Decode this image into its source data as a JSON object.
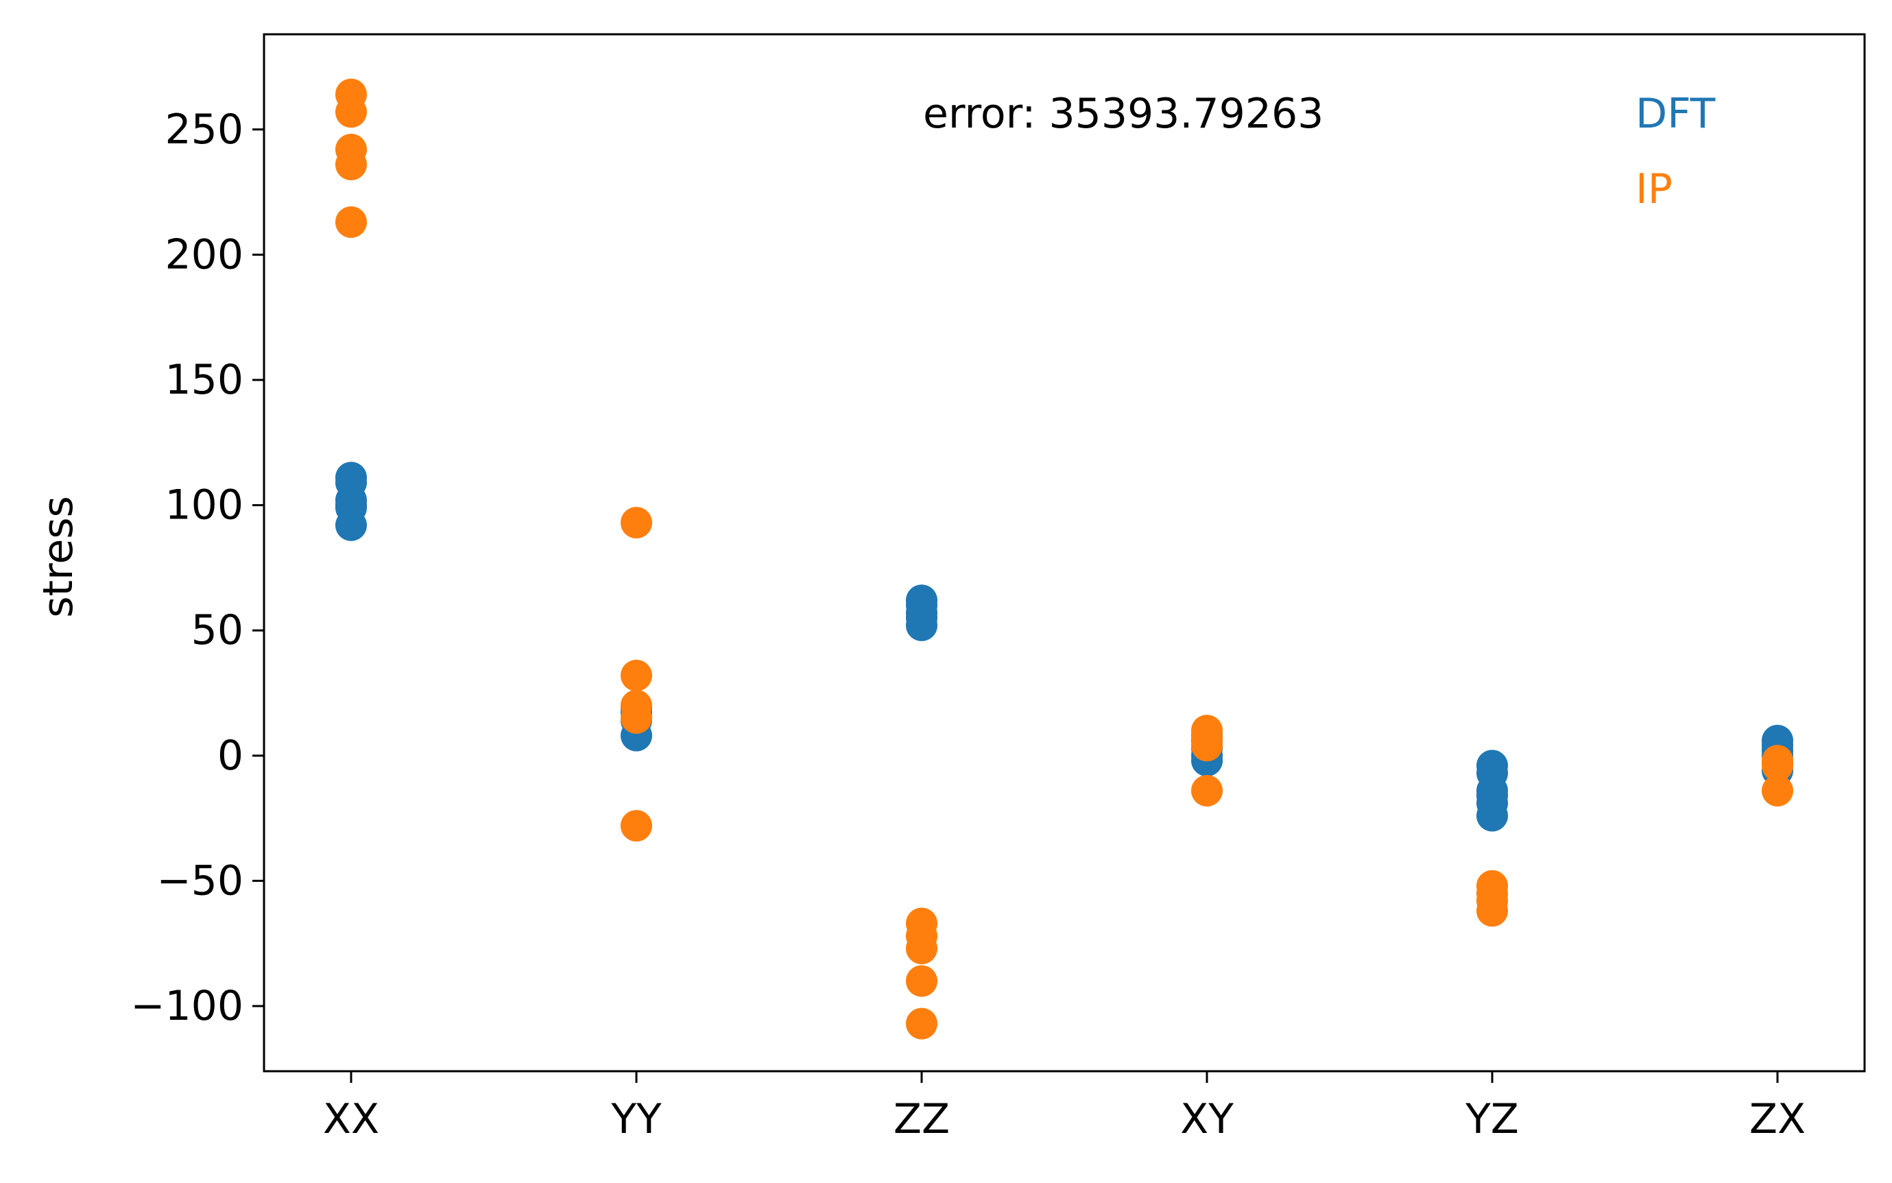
{
  "chart_data": {
    "type": "scatter",
    "title": "",
    "xlabel": "",
    "ylabel": "stress",
    "categories": [
      "XX",
      "YY",
      "ZZ",
      "XY",
      "YZ",
      "ZX"
    ],
    "ylim": [
      -126,
      288
    ],
    "yticks": [
      -100,
      -50,
      0,
      50,
      100,
      150,
      200,
      250
    ],
    "ytick_labels": [
      "−100",
      "−50",
      "0",
      "50",
      "100",
      "150",
      "200",
      "250"
    ],
    "grid": false,
    "annotation": "error: 35393.79263",
    "legend": {
      "placement": "top-right",
      "entries": [
        {
          "label": "DFT",
          "color": "#1f77b4"
        },
        {
          "label": "IP",
          "color": "#ff7f0e"
        }
      ]
    },
    "series": [
      {
        "name": "DFT",
        "color": "#1f77b4",
        "values": [
          [
            111,
            109,
            102,
            100,
            99,
            92
          ],
          [
            19,
            17,
            14,
            8
          ],
          [
            62,
            60,
            57,
            55,
            52
          ],
          [
            8,
            6,
            3,
            0,
            -2
          ],
          [
            -4,
            -7,
            -14,
            -16,
            -19,
            -24
          ],
          [
            6,
            4,
            2,
            0,
            -3,
            -6
          ]
        ]
      },
      {
        "name": "IP",
        "color": "#ff7f0e",
        "values": [
          [
            264,
            257,
            242,
            236,
            213
          ],
          [
            93,
            32,
            20,
            15,
            -28
          ],
          [
            -67,
            -72,
            -77,
            -90,
            -107
          ],
          [
            10,
            7,
            4,
            -14
          ],
          [
            -52,
            -55,
            -58,
            -62
          ],
          [
            -2,
            -4,
            -14
          ]
        ]
      }
    ]
  }
}
